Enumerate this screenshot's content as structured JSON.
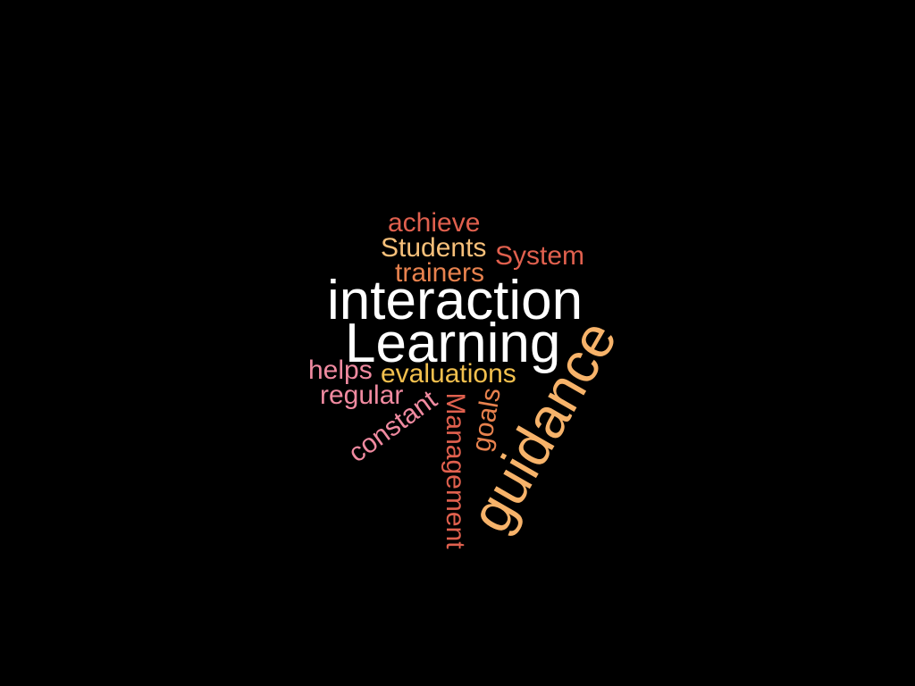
{
  "words": {
    "achieve": {
      "text": "achieve",
      "color": "#e0604e"
    },
    "students": {
      "text": "Students",
      "color": "#f7c07a"
    },
    "system": {
      "text": "System",
      "color": "#e0604e"
    },
    "trainers": {
      "text": "trainers",
      "color": "#e8824e"
    },
    "interaction": {
      "text": "interaction",
      "color": "#ffffff"
    },
    "learning": {
      "text": "Learning",
      "color": "#ffffff"
    },
    "guidance": {
      "text": "guidance",
      "color": "#f7b36a"
    },
    "helps": {
      "text": "helps",
      "color": "#f08aa0"
    },
    "evaluations": {
      "text": "evaluations",
      "color": "#f2c04e"
    },
    "regular": {
      "text": "regular",
      "color": "#f08aa0"
    },
    "constant": {
      "text": "constant",
      "color": "#f08aa0"
    },
    "management": {
      "text": "Management",
      "color": "#e0604e"
    },
    "goals": {
      "text": "goals",
      "color": "#e8824e"
    }
  }
}
